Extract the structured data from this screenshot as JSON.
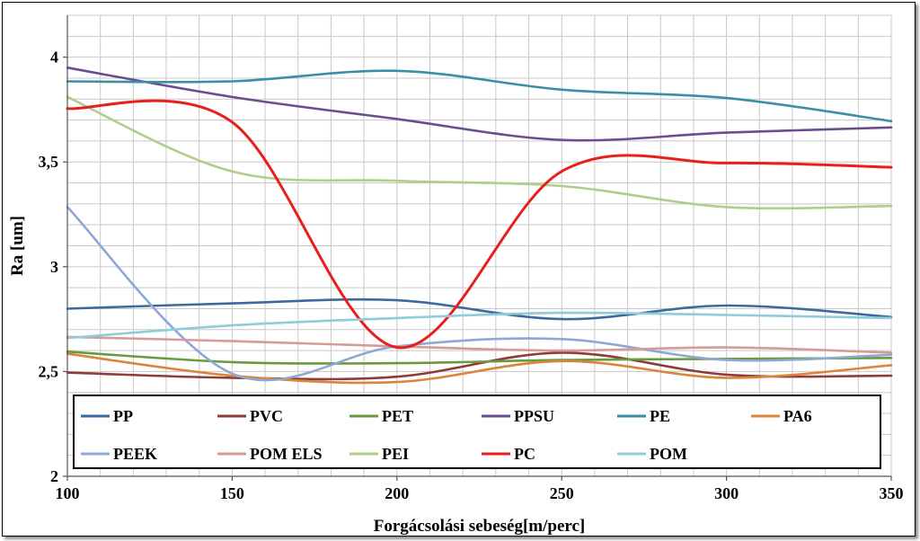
{
  "chart_data": {
    "type": "line",
    "title": "",
    "xlabel": "Forgácsolási sebeség[m/perc]",
    "ylabel": "Ra [um]",
    "x": [
      100,
      150,
      200,
      250,
      300,
      350
    ],
    "x_ticks": [
      "100",
      "150",
      "200",
      "250",
      "300",
      "350"
    ],
    "xlim": [
      100,
      350
    ],
    "y_ticks": [
      "2",
      "2,5",
      "3",
      "3,5",
      "4"
    ],
    "y_tick_values": [
      2,
      2.5,
      3,
      3.5,
      4
    ],
    "ylim": [
      2,
      4.2
    ],
    "grid": true,
    "legend_position": "bottom-inside",
    "series": [
      {
        "name": "PP",
        "color": "#3D6A9C",
        "values": [
          2.8,
          2.825,
          2.84,
          2.75,
          2.815,
          2.76
        ]
      },
      {
        "name": "PVC",
        "color": "#8E3B3B",
        "values": [
          2.495,
          2.47,
          2.475,
          2.59,
          2.485,
          2.48
        ]
      },
      {
        "name": "PET",
        "color": "#6B9A3C",
        "values": [
          2.595,
          2.545,
          2.54,
          2.555,
          2.56,
          2.565
        ]
      },
      {
        "name": "PPSU",
        "color": "#6B4E8E",
        "values": [
          3.95,
          3.81,
          3.705,
          3.605,
          3.64,
          3.665
        ]
      },
      {
        "name": "PE",
        "color": "#3A8FA6",
        "values": [
          3.885,
          3.885,
          3.935,
          3.845,
          3.805,
          3.695
        ]
      },
      {
        "name": "PA6",
        "color": "#D9853B",
        "values": [
          2.585,
          2.48,
          2.45,
          2.55,
          2.47,
          2.53
        ]
      },
      {
        "name": "PEEK",
        "color": "#8EA8D6",
        "values": [
          3.285,
          2.49,
          2.62,
          2.655,
          2.555,
          2.58
        ]
      },
      {
        "name": "POM ELS",
        "color": "#D69A98",
        "values": [
          2.665,
          2.645,
          2.62,
          2.6,
          2.615,
          2.59
        ]
      },
      {
        "name": "PEI",
        "color": "#B0CE8A",
        "values": [
          3.81,
          3.455,
          3.41,
          3.385,
          3.285,
          3.29
        ]
      },
      {
        "name": "PC",
        "color": "#E8201C",
        "values": [
          3.755,
          3.69,
          2.615,
          3.455,
          3.495,
          3.475
        ]
      },
      {
        "name": "POM",
        "color": "#8ECCDA",
        "values": [
          2.66,
          2.72,
          2.755,
          2.78,
          2.77,
          2.755
        ]
      }
    ]
  }
}
